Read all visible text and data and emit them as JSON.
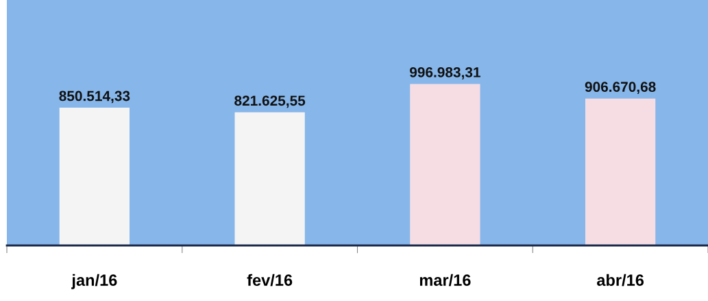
{
  "chart_data": {
    "type": "bar",
    "categories": [
      "jan/16",
      "fev/16",
      "mar/16",
      "abr/16"
    ],
    "values": [
      850514.33,
      821625.55,
      996983.31,
      906670.68
    ],
    "value_labels": [
      "850.514,33",
      "821.625,55",
      "996.983,31",
      "906.670,68"
    ],
    "colors": [
      "#f4f4f4",
      "#f4f4f4",
      "#f5dde3",
      "#f5dde3"
    ],
    "ylim": [
      0,
      1515000
    ],
    "tick_labels": "x"
  }
}
